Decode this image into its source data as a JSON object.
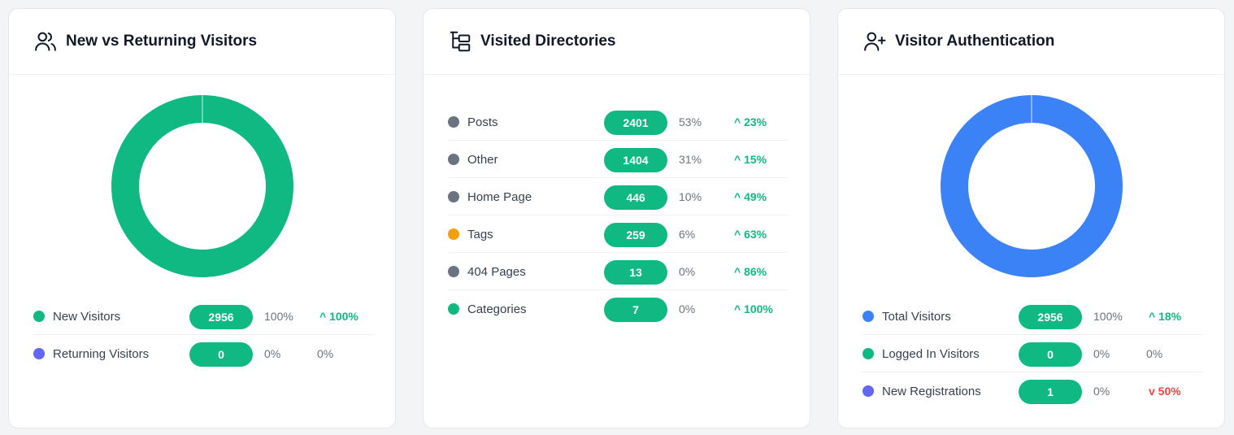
{
  "cards": [
    {
      "title": "New vs Returning Visitors",
      "icon": "users-icon",
      "rows": [
        {
          "label": "New Visitors",
          "color": "#10b981",
          "value": "2956",
          "pct": "100%",
          "trend": "^ 100%",
          "trend_dir": "up"
        },
        {
          "label": "Returning Visitors",
          "color": "#6366f1",
          "value": "0",
          "pct": "0%",
          "trend": "0%",
          "trend_dir": "flat"
        }
      ],
      "donut": [
        {
          "value": 2956,
          "color": "#10b981"
        },
        {
          "value": 0,
          "color": "#6366f1"
        }
      ]
    },
    {
      "title": "Visited Directories",
      "icon": "folder-tree-icon",
      "rows": [
        {
          "label": "Posts",
          "color": "#6b7280",
          "value": "2401",
          "pct": "53%",
          "trend": "^ 23%",
          "trend_dir": "up"
        },
        {
          "label": "Other",
          "color": "#6b7280",
          "value": "1404",
          "pct": "31%",
          "trend": "^ 15%",
          "trend_dir": "up"
        },
        {
          "label": "Home Page",
          "color": "#6b7280",
          "value": "446",
          "pct": "10%",
          "trend": "^ 49%",
          "trend_dir": "up"
        },
        {
          "label": "Tags",
          "color": "#f59e0b",
          "value": "259",
          "pct": "6%",
          "trend": "^ 63%",
          "trend_dir": "up"
        },
        {
          "label": "404 Pages",
          "color": "#6b7280",
          "value": "13",
          "pct": "0%",
          "trend": "^ 86%",
          "trend_dir": "up"
        },
        {
          "label": "Categories",
          "color": "#10b981",
          "value": "7",
          "pct": "0%",
          "trend": "^ 100%",
          "trend_dir": "up"
        }
      ]
    },
    {
      "title": "Visitor Authentication",
      "icon": "user-plus-icon",
      "rows": [
        {
          "label": "Total Visitors",
          "color": "#3b82f6",
          "value": "2956",
          "pct": "100%",
          "trend": "^ 18%",
          "trend_dir": "up"
        },
        {
          "label": "Logged In Visitors",
          "color": "#10b981",
          "value": "0",
          "pct": "0%",
          "trend": "0%",
          "trend_dir": "flat"
        },
        {
          "label": "New Registrations",
          "color": "#6366f1",
          "value": "1",
          "pct": "0%",
          "trend": "v 50%",
          "trend_dir": "down"
        }
      ],
      "donut": [
        {
          "value": 2956,
          "color": "#3b82f6"
        },
        {
          "value": 0,
          "color": "#10b981"
        },
        {
          "value": 1,
          "color": "#6366f1"
        }
      ]
    }
  ]
}
